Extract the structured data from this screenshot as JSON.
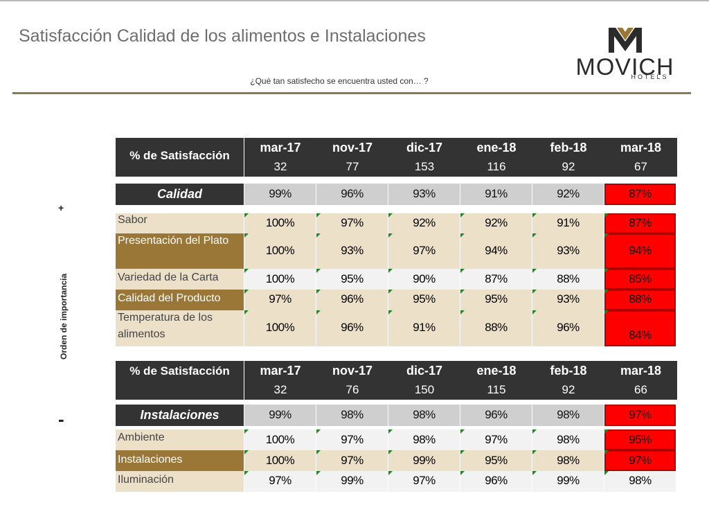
{
  "title": "Satisfacción Calidad de los alimentos e Instalaciones",
  "subtitle": "¿Qué tan satisfecho se encuentra usted con… ?",
  "logo": {
    "word": "MOVICH",
    "sub": "HOTELS",
    "mark": "movich-m-logo"
  },
  "side": {
    "plus": "+",
    "minus": "-",
    "label": "Orden de importancia"
  },
  "colors": {
    "header": "#333333",
    "gold": "#9a7736",
    "beige": "#ece0c8",
    "alert": "#ff0000",
    "flag": "#1c8a1c"
  },
  "table1": {
    "header_label": "% de Satisfacción",
    "columns": [
      {
        "period": "mar-17",
        "n": "32"
      },
      {
        "period": "nov-17",
        "n": "77"
      },
      {
        "period": "dic-17",
        "n": "153"
      },
      {
        "period": "ene-18",
        "n": "116"
      },
      {
        "period": "feb-18",
        "n": "92"
      },
      {
        "period": "mar-18",
        "n": "67"
      }
    ],
    "category": {
      "label": "Calidad",
      "values": [
        "99%",
        "96%",
        "93%",
        "91%",
        "92%",
        "87%"
      ]
    },
    "rows": [
      {
        "label": "Sabor",
        "values": [
          "100%",
          "97%",
          "92%",
          "92%",
          "91%",
          "87%"
        ]
      },
      {
        "label": "Presentación del Plato",
        "values": [
          "100%",
          "93%",
          "97%",
          "94%",
          "93%",
          "94%"
        ]
      },
      {
        "label": "Variedad de la Carta",
        "values": [
          "100%",
          "95%",
          "90%",
          "87%",
          "88%",
          "85%"
        ]
      },
      {
        "label": "Calidad del Producto",
        "values": [
          "97%",
          "96%",
          "95%",
          "95%",
          "93%",
          "88%"
        ]
      },
      {
        "label": "Temperatura de los alimentos",
        "values": [
          "100%",
          "96%",
          "91%",
          "88%",
          "96%",
          "84%"
        ]
      }
    ]
  },
  "table2": {
    "header_label": "% de Satisfacción",
    "columns": [
      {
        "period": "mar-17",
        "n": "32"
      },
      {
        "period": "nov-17",
        "n": "76"
      },
      {
        "period": "dic-17",
        "n": "150"
      },
      {
        "period": "ene-18",
        "n": "115"
      },
      {
        "period": "feb-18",
        "n": "92"
      },
      {
        "period": "mar-18",
        "n": "66"
      }
    ],
    "category": {
      "label": "Instalaciones",
      "values": [
        "99%",
        "98%",
        "98%",
        "96%",
        "98%",
        "97%"
      ]
    },
    "rows": [
      {
        "label": "Ambiente",
        "values": [
          "100%",
          "97%",
          "98%",
          "97%",
          "98%",
          "95%"
        ]
      },
      {
        "label": "Instalaciones",
        "values": [
          "100%",
          "97%",
          "99%",
          "95%",
          "98%",
          "97%"
        ]
      },
      {
        "label": "Iluminación",
        "values": [
          "97%",
          "99%",
          "97%",
          "96%",
          "99%",
          "98%"
        ]
      }
    ]
  }
}
